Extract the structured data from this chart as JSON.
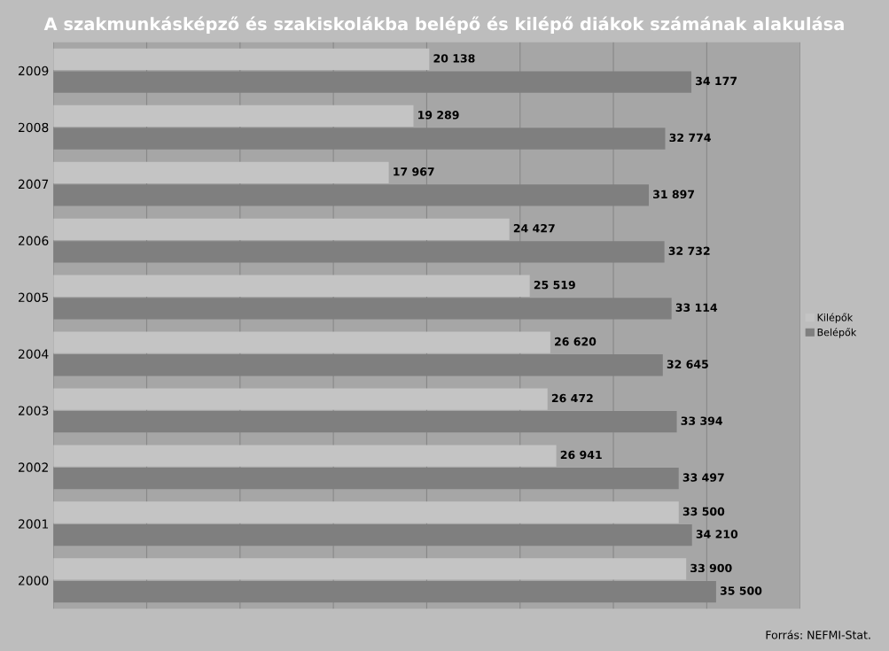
{
  "chart_data": {
    "type": "bar",
    "orientation": "horizontal",
    "title": "A szakmunkásképző és szakiskolákba belépő és kilépő diákok számának alakulása",
    "categories": [
      "2009",
      "2008",
      "2007",
      "2006",
      "2005",
      "2004",
      "2003",
      "2002",
      "2001",
      "2000"
    ],
    "series": [
      {
        "name": "Kilépők",
        "color": "#c4c4c4",
        "values": [
          20138,
          19289,
          17967,
          24427,
          25519,
          26620,
          26472,
          26941,
          33500,
          33900
        ],
        "value_labels": [
          "20 138",
          "19 289",
          "17 967",
          "24 427",
          "25 519",
          "26 620",
          "26 472",
          "26 941",
          "33 500",
          "33 900"
        ]
      },
      {
        "name": "Belépők",
        "color": "#7f7f7f",
        "values": [
          34177,
          32774,
          31897,
          32732,
          33114,
          32645,
          33394,
          33497,
          34210,
          35500
        ],
        "value_labels": [
          "34 177",
          "32 774",
          "31 897",
          "32 732",
          "33 114",
          "32 645",
          "33 394",
          "33 497",
          "34 210",
          "35 500"
        ]
      }
    ],
    "xlim": [
      0,
      40000
    ],
    "xticks": [
      {
        "value": 0,
        "label": null
      },
      {
        "value": 5000,
        "label": null
      },
      {
        "value": 10000,
        "label": null
      },
      {
        "value": 15000,
        "label": null
      },
      {
        "value": 20000,
        "label": null
      },
      {
        "value": 25000,
        "label": null
      },
      {
        "value": 30000,
        "label": null
      },
      {
        "value": 35000,
        "label": null
      },
      {
        "value": 40000,
        "label": null
      }
    ],
    "grid": "x",
    "legend": "right",
    "tick_labels": "y",
    "annotations": [
      "Forrás: NEFMI-Stat."
    ]
  }
}
